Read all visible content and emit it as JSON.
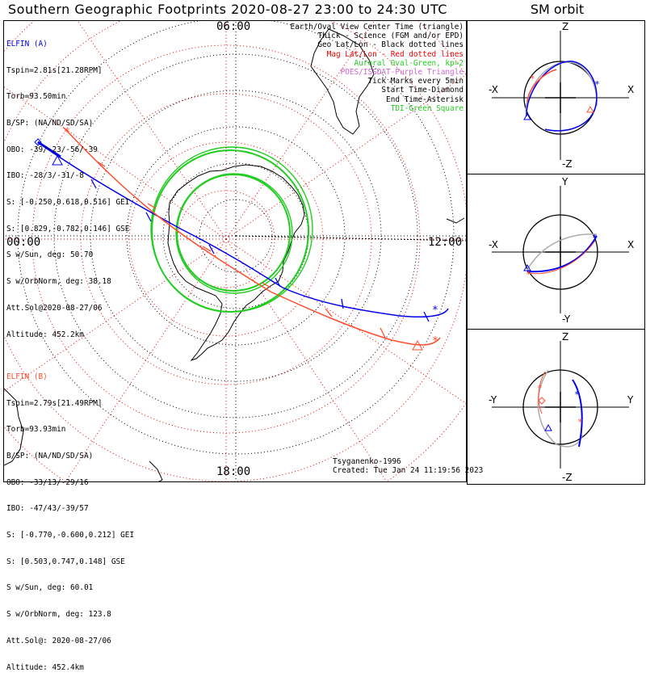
{
  "title": "Southern Geographic Footprints 2020-08-27 23:00 to 24:30 UTC",
  "sm_orbit_title": "SM orbit",
  "hour_labels": {
    "top": "06:00",
    "left": "00:00",
    "right": "12:00",
    "bottom": "18:00"
  },
  "elfin_a": {
    "color": "#0000ee",
    "lines": [
      "ELFIN (A)",
      "Tspin=2.81s[21.28RPM]",
      "Torb=93.50min",
      "B/SP: (NA/ND/SD/SA)",
      "OBO: -39/-23/-56/-39",
      "IBO: -28/3/-31/-8",
      "S: [-0.250,0.618,0.516] GEI",
      "S: [0.829,-0.782,0.146] GSE",
      "S w/Sun, deg: 50.70",
      "S w/OrbNorm, deg: 38.18",
      "Att.Sol@2020-08-27/06",
      "Altitude: 452.2km"
    ]
  },
  "elfin_b": {
    "color": "#ff4d2e",
    "lines": [
      "ELFIN (B)",
      "Tspin=2.79s[21.49RPM]",
      "Torb=93.93min",
      "B/SP: (NA/ND/SD/SA)",
      "OBO: -33/13/-29/16",
      "IBO: -47/43/-39/57",
      "S: [-0.770,-0.600,0.212] GEI",
      "S: [0.503,0.747,0.148] GSE",
      "S w/Sun, deg: 60.01",
      "S w/OrbNorm, deg: 123.8",
      "Att.Sol@: 2020-08-27/06",
      "Altitude: 452.4km"
    ]
  },
  "legend": [
    {
      "text": "Earth/Oval View Center Time (triangle)",
      "color": "#000000"
    },
    {
      "text": "Thick - Science (FGM and/or EPD)",
      "color": "#000000"
    },
    {
      "text": "Geo Lat/Lon - Black dotted lines",
      "color": "#000000"
    },
    {
      "text": "Mag Lat/Lon - Red dotted lines",
      "color": "#ee0000"
    },
    {
      "text": "Auroral Oval-Green, kp=2",
      "color": "#22cc22"
    },
    {
      "text": "POES/ISSDAT-Purple Triangle",
      "color": "#cc66cc"
    },
    {
      "text": "Tick Marks every 5min",
      "color": "#000000"
    },
    {
      "text": "Start Time-Diamond",
      "color": "#000000"
    },
    {
      "text": "End Time-Asterisk",
      "color": "#000000"
    },
    {
      "text": "TDI-Green Square",
      "color": "#22cc22"
    }
  ],
  "credits": {
    "model": "Tsyganenko-1996",
    "created": "Created: Tue Jan 24 11:19:56 2023"
  },
  "panels": [
    {
      "top": "Z",
      "bottom": "-Z",
      "left": "-X",
      "right": "X"
    },
    {
      "top": "Y",
      "bottom": "-Y",
      "left": "-X",
      "right": "X"
    },
    {
      "top": "Z",
      "bottom": "-Z",
      "left": "-Y",
      "right": "Y"
    }
  ],
  "colors": {
    "geo_grid": "#000000",
    "mag_grid": "#ee0000",
    "oval": "#22cc22",
    "elfin_a": "#0000ee",
    "elfin_b": "#ff4d2e",
    "orbit_gray": "#aaaaaa"
  }
}
